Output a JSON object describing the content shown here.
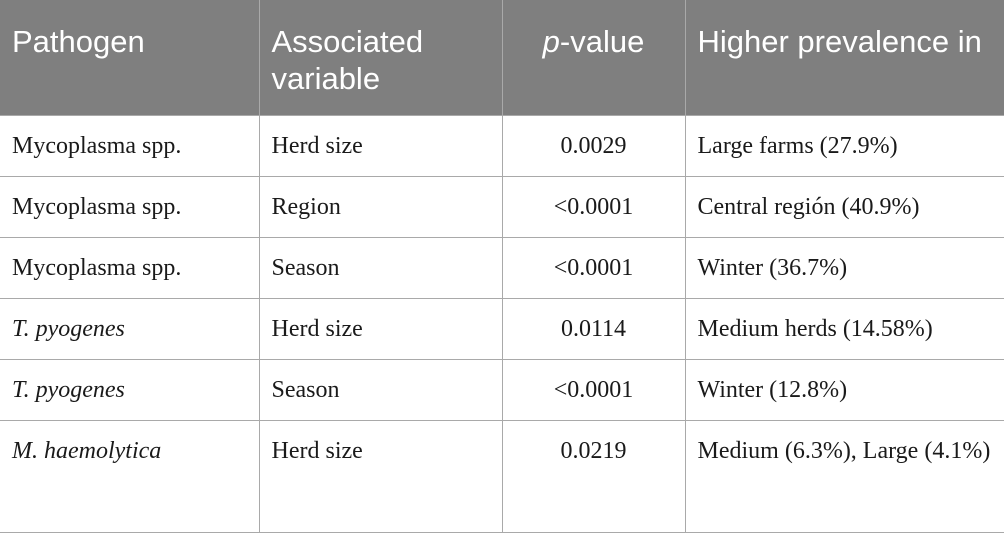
{
  "header": {
    "pathogen": "Pathogen",
    "associated_variable": "Associated variable",
    "p_value_italic": "p",
    "p_value_rest": "-value",
    "higher_prevalence": "Higher prevalence in"
  },
  "rows": [
    {
      "pathogen": "Mycoplasma spp.",
      "italic": false,
      "variable": "Herd size",
      "p_value": "0.0029",
      "prevalence": "Large farms (27.9%)"
    },
    {
      "pathogen": "Mycoplasma spp.",
      "italic": false,
      "variable": "Region",
      "p_value": "<0.0001",
      "prevalence": "Central región (40.9%)"
    },
    {
      "pathogen": "Mycoplasma spp.",
      "italic": false,
      "variable": "Season",
      "p_value": "<0.0001",
      "prevalence": "Winter (36.7%)"
    },
    {
      "pathogen": "T. pyogenes",
      "italic": true,
      "variable": "Herd size",
      "p_value": "0.0114",
      "prevalence": "Medium herds (14.58%)"
    },
    {
      "pathogen": "T. pyogenes",
      "italic": true,
      "variable": "Season",
      "p_value": "<0.0001",
      "prevalence": "Winter (12.8%)"
    },
    {
      "pathogen": "M. haemolytica",
      "italic": true,
      "variable": "Herd size",
      "p_value": "0.0219",
      "prevalence": "Medium (6.3%), Large (4.1%)"
    }
  ]
}
